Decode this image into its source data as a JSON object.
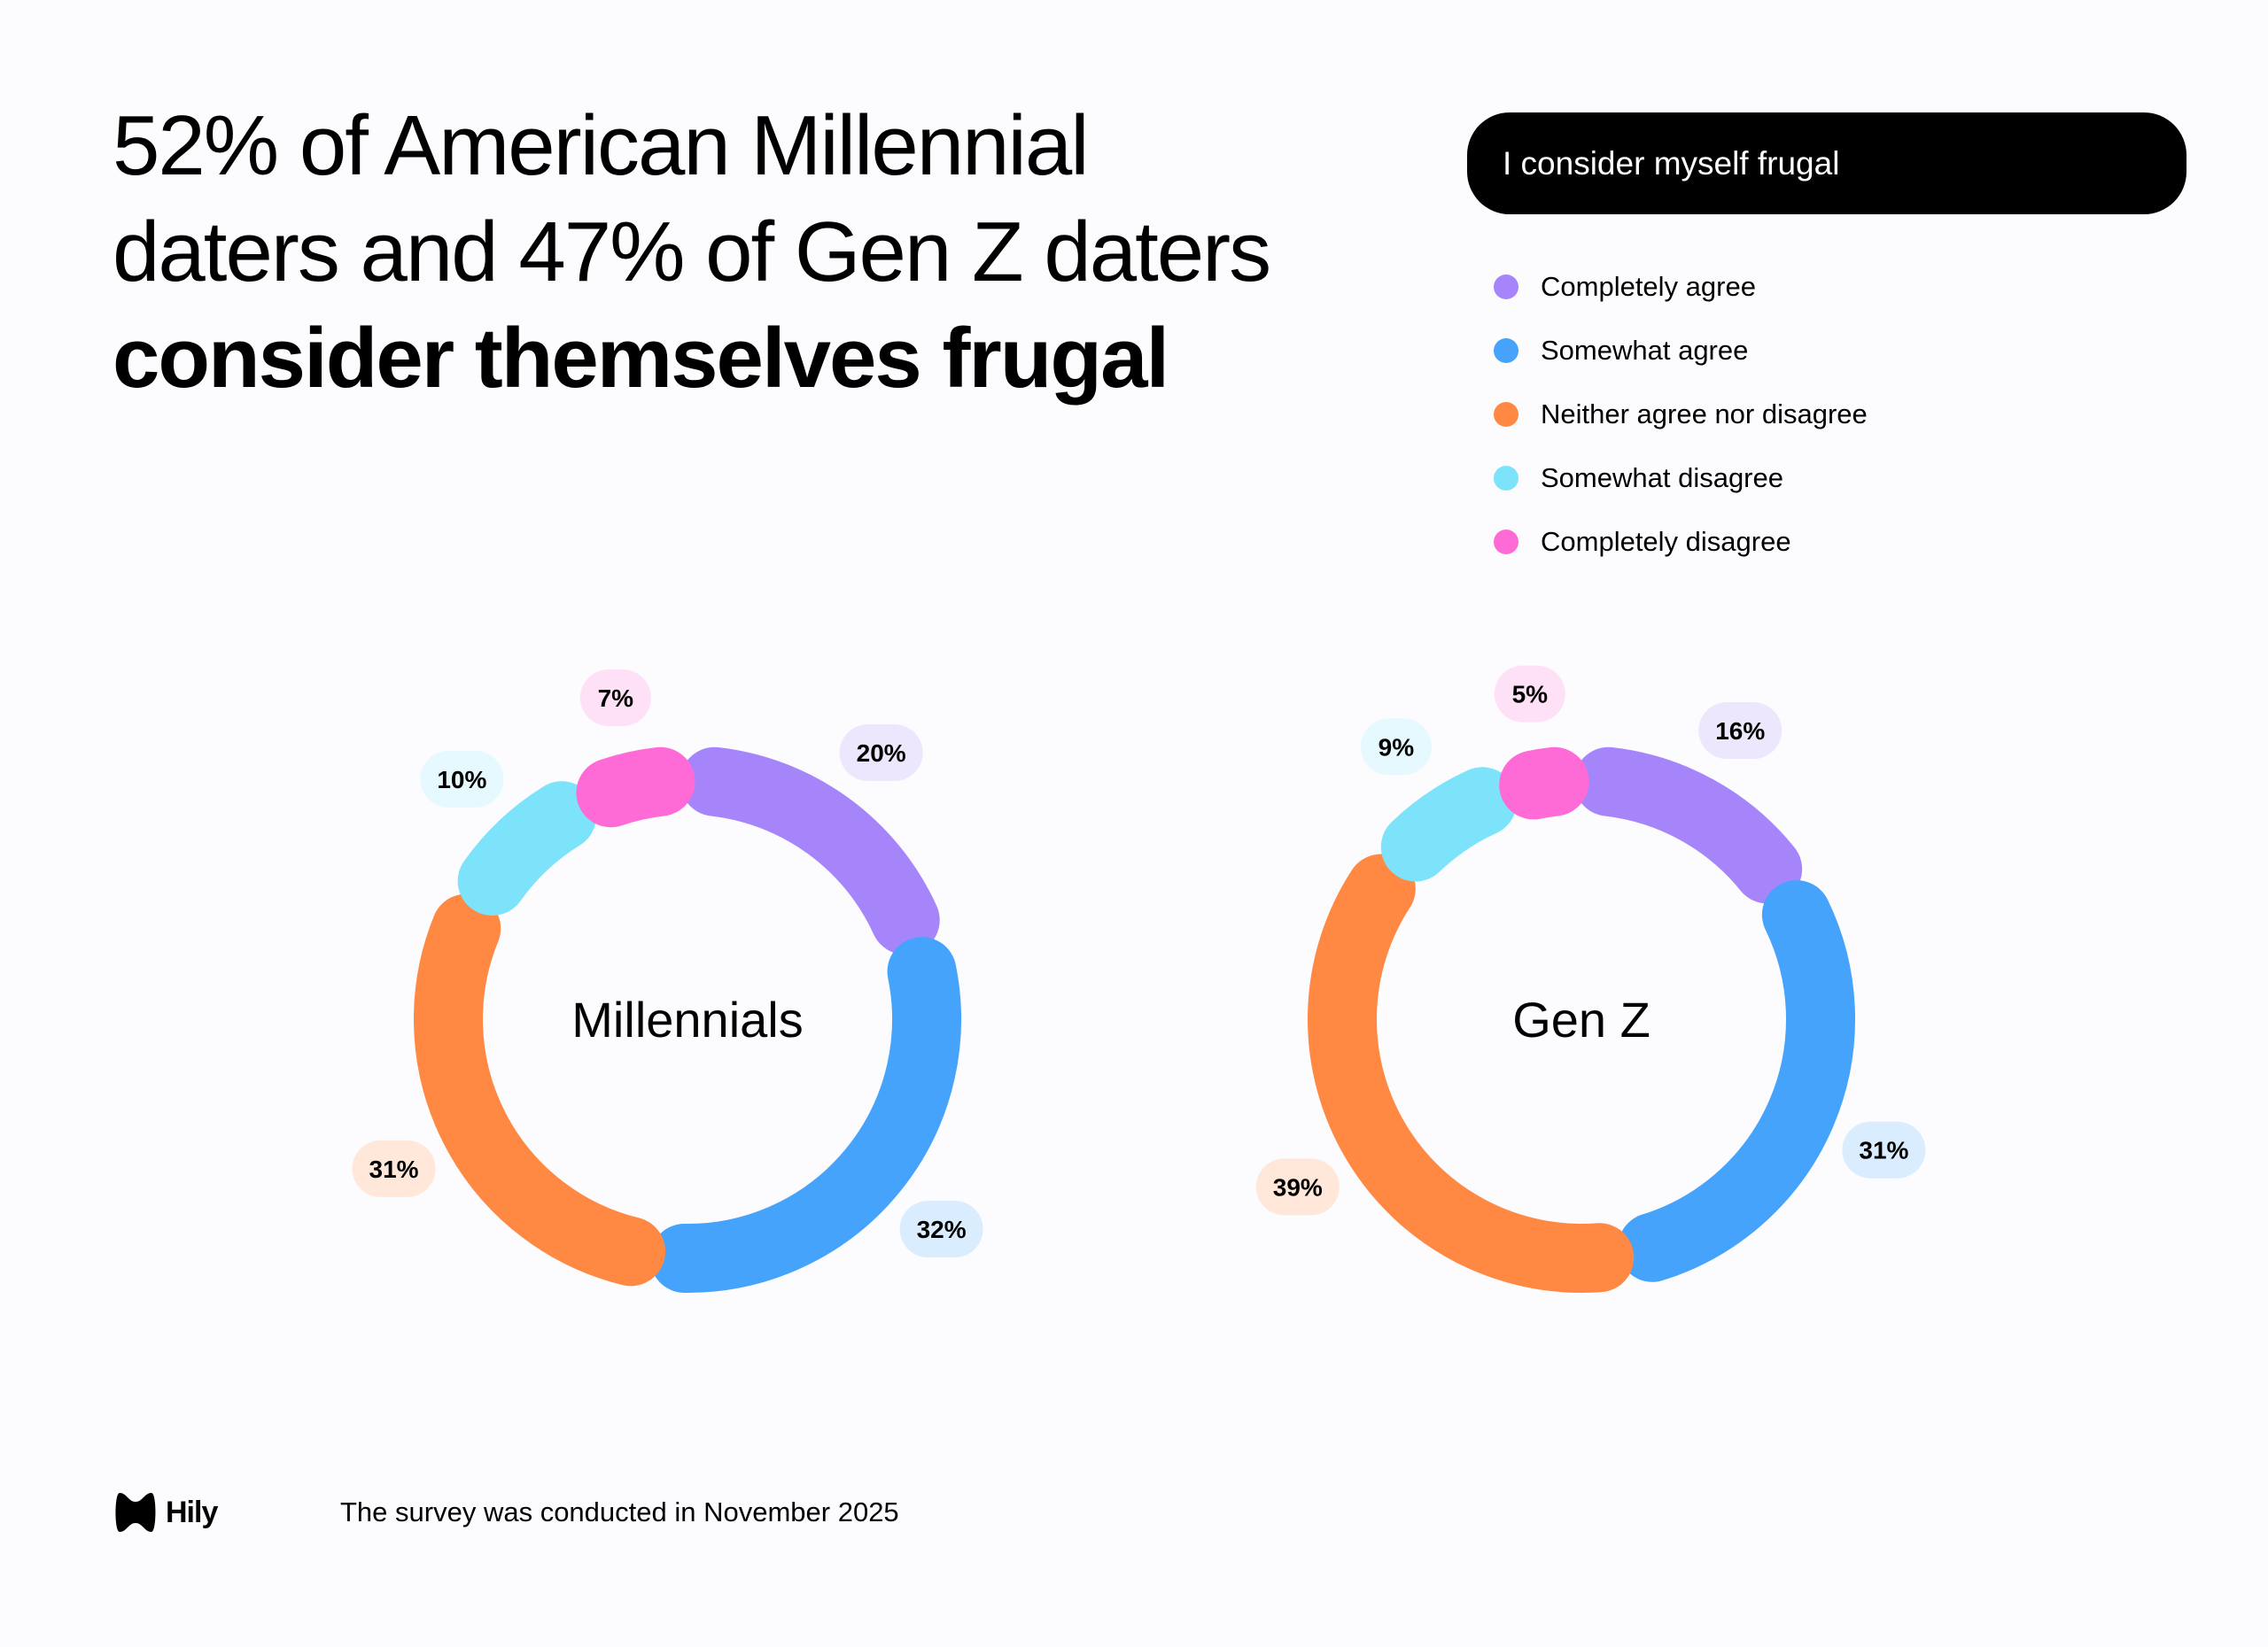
{
  "title": {
    "line1": "52% of American Millennial",
    "line2": "daters and 47% of Gen Z daters",
    "line3_bold": "consider themselves frugal"
  },
  "legend": {
    "title": "I consider myself frugal",
    "items": [
      {
        "label": "Completely agree",
        "color": "#a685fb"
      },
      {
        "label": "Somewhat agree",
        "color": "#45a3fb"
      },
      {
        "label": "Neither agree nor disagree",
        "color": "#ff8843"
      },
      {
        "label": "Somewhat disagree",
        "color": "#7ce3fb"
      },
      {
        "label": "Completely disagree",
        "color": "#ff6bd6"
      }
    ]
  },
  "chart_data": [
    {
      "type": "pie",
      "variant": "donut",
      "center_label": "Millennials",
      "categories": [
        "Completely agree",
        "Somewhat agree",
        "Neither agree nor disagree",
        "Somewhat disagree",
        "Completely disagree"
      ],
      "values": [
        20,
        32,
        31,
        10,
        7
      ],
      "labels": [
        "20%",
        "32%",
        "31%",
        "10%",
        "7%"
      ]
    },
    {
      "type": "pie",
      "variant": "donut",
      "center_label": "Gen Z",
      "categories": [
        "Completely agree",
        "Somewhat agree",
        "Neither agree nor disagree",
        "Somewhat disagree",
        "Completely disagree"
      ],
      "values": [
        16,
        31,
        39,
        9,
        5
      ],
      "labels": [
        "16%",
        "31%",
        "39%",
        "9%",
        "5%"
      ]
    }
  ],
  "footer": {
    "logo": "Hily",
    "note": "The survey was conducted in November 2025"
  }
}
